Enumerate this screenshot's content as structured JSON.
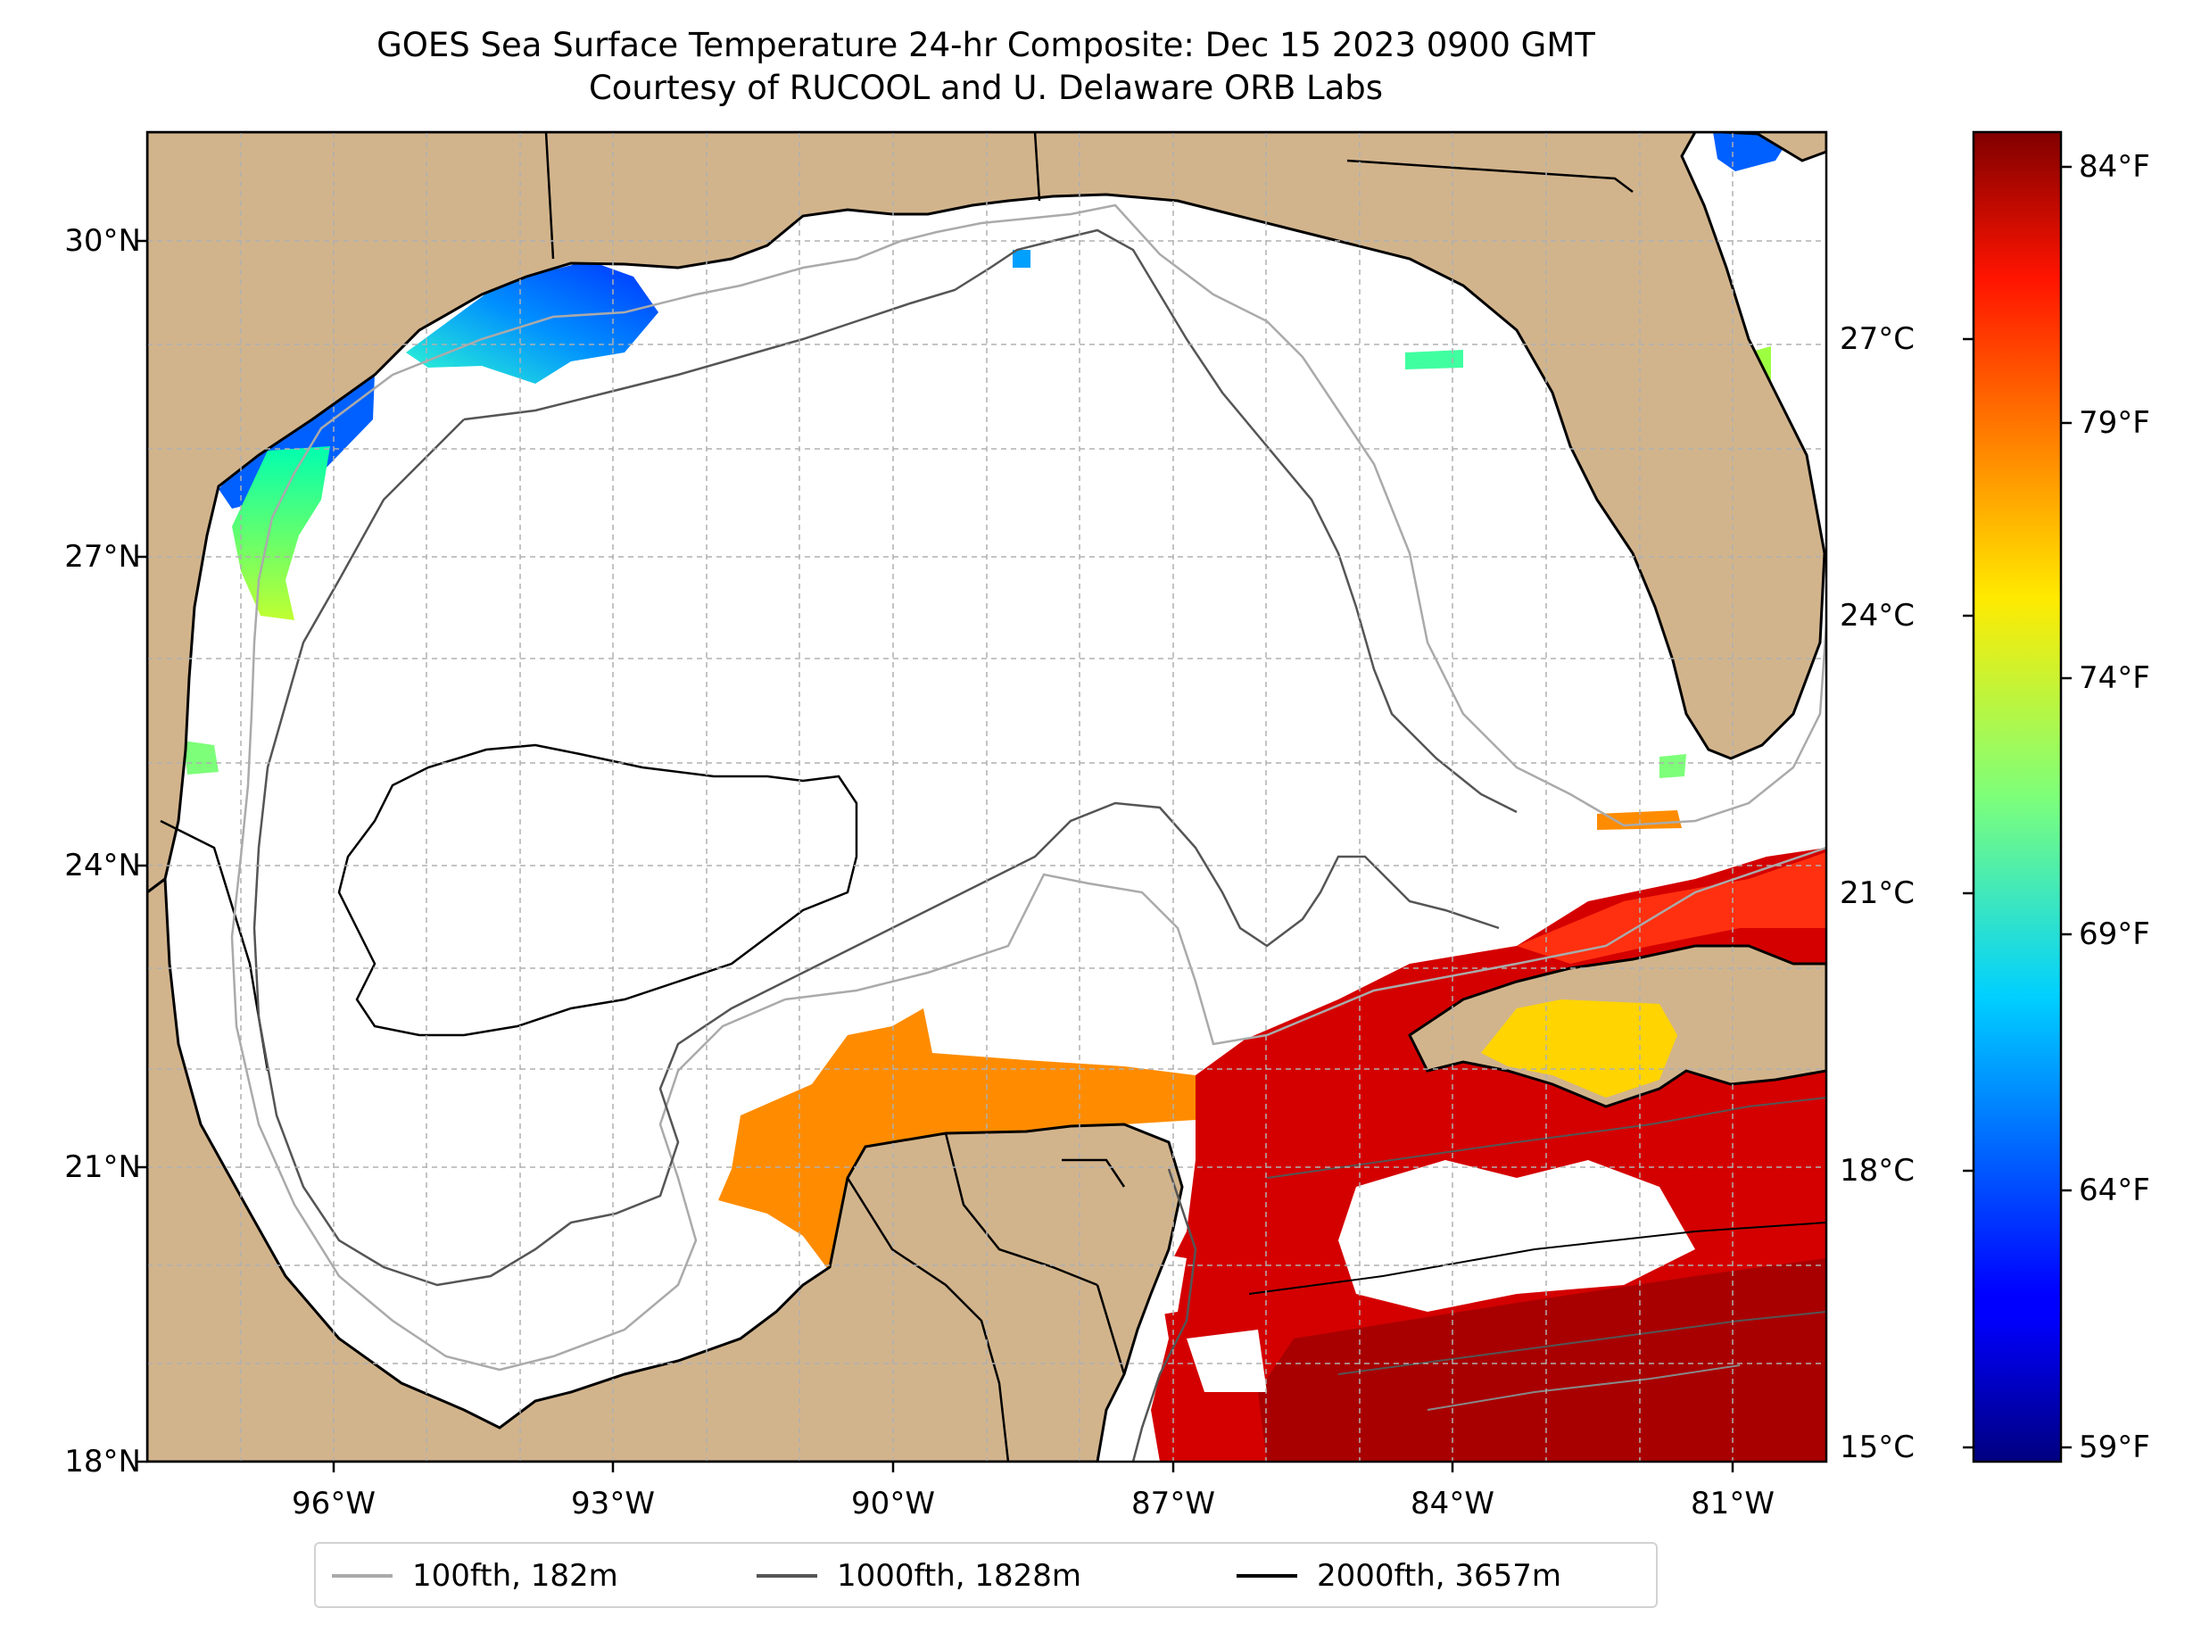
{
  "title": {
    "line1": "GOES Sea Surface Temperature 24-hr Composite: Dec 15 2023 0900 GMT",
    "line2": "Courtesy of RUCOOL and U. Delaware ORB Labs"
  },
  "map": {
    "lon_range": [
      -98,
      -80
    ],
    "lat_range": [
      18,
      31
    ],
    "land_color": "#d2b48c",
    "ocean_color": "#ffffff",
    "lat_ticks": [
      {
        "value": 30,
        "label": "30°N"
      },
      {
        "value": 27,
        "label": "27°N"
      },
      {
        "value": 24,
        "label": "24°N"
      },
      {
        "value": 21,
        "label": "21°N"
      },
      {
        "value": 18,
        "label": "18°N"
      }
    ],
    "lon_ticks": [
      {
        "value": -96,
        "label": "96°W"
      },
      {
        "value": -93,
        "label": "93°W"
      },
      {
        "value": -90,
        "label": "90°W"
      },
      {
        "value": -87,
        "label": "87°W"
      },
      {
        "value": -84,
        "label": "84°W"
      },
      {
        "value": -81,
        "label": "81°W"
      }
    ]
  },
  "colorbar": {
    "colormap": "jet",
    "range_f": [
      58.4,
      84.8
    ],
    "celsius_ticks": [
      {
        "value": 27,
        "label": "27°C"
      },
      {
        "value": 24,
        "label": "24°C"
      },
      {
        "value": 21,
        "label": "21°C"
      },
      {
        "value": 18,
        "label": "18°C"
      },
      {
        "value": 15,
        "label": "15°C"
      }
    ],
    "fahrenheit_ticks": [
      {
        "value": 84,
        "label": "84°F"
      },
      {
        "value": 79,
        "label": "79°F"
      },
      {
        "value": 74,
        "label": "74°F"
      },
      {
        "value": 69,
        "label": "69°F"
      },
      {
        "value": 64,
        "label": "64°F"
      },
      {
        "value": 59,
        "label": "59°F"
      }
    ]
  },
  "legend": {
    "items": [
      {
        "label": "100fth, 182m",
        "color": "#aaaaaa"
      },
      {
        "label": "1000fth, 1828m",
        "color": "#555555"
      },
      {
        "label": "2000fth, 3657m",
        "color": "#000000"
      }
    ]
  },
  "sst_regions": [
    {
      "name": "texas-louisiana-shelf",
      "temp_f": 63
    },
    {
      "name": "south-texas-shelf",
      "temp_f": 71
    },
    {
      "name": "yucatan-north-shelf",
      "temp_f": 78.5
    },
    {
      "name": "caribbean",
      "temp_f": 83.5
    },
    {
      "name": "cuba-south",
      "temp_f": 76
    },
    {
      "name": "florida-keys",
      "temp_f": 79
    }
  ]
}
